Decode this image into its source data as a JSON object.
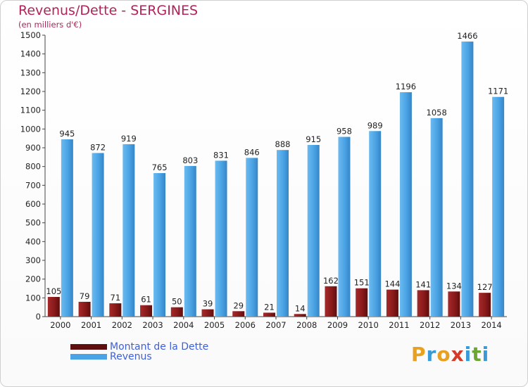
{
  "header": {
    "title": "Revenus/Dette - SERGINES",
    "subtitle": "(en milliers d'€)"
  },
  "legend": {
    "dette_label": "Montant de la Dette",
    "revenus_label": "Revenus"
  },
  "logo": {
    "text": "Proxiti",
    "letters": [
      "P",
      "r",
      "o",
      "x",
      "i",
      "t",
      "i"
    ],
    "colors": [
      "#e8a020",
      "#3a9ad8",
      "#e8a020",
      "#d43a2a",
      "#3a9ad8",
      "#6aa832",
      "#3a9ad8"
    ]
  },
  "colors": {
    "dette": "#8a1a1a",
    "revenus": "#4aa3e4",
    "title": "#b0245a",
    "legend_text": "#3f5fd8"
  },
  "chart_data": {
    "type": "bar",
    "title": "Revenus/Dette - SERGINES",
    "subtitle": "(en milliers d'€)",
    "categories": [
      "2000",
      "2001",
      "2002",
      "2003",
      "2004",
      "2005",
      "2006",
      "2007",
      "2008",
      "2009",
      "2010",
      "2011",
      "2012",
      "2013",
      "2014"
    ],
    "series": [
      {
        "name": "Montant de la Dette",
        "values": [
          105,
          79,
          71,
          61,
          50,
          39,
          29,
          21,
          14,
          162,
          151,
          144,
          141,
          134,
          127
        ]
      },
      {
        "name": "Revenus",
        "values": [
          945,
          872,
          919,
          765,
          803,
          831,
          846,
          888,
          915,
          958,
          989,
          1196,
          1058,
          1466,
          1171
        ]
      }
    ],
    "yticks": [
      0,
      100,
      200,
      300,
      400,
      500,
      600,
      700,
      800,
      900,
      1000,
      1100,
      1200,
      1300,
      1400,
      1500
    ],
    "ylim": [
      0,
      1500
    ],
    "grid": false,
    "legend_position": "bottom-left"
  }
}
